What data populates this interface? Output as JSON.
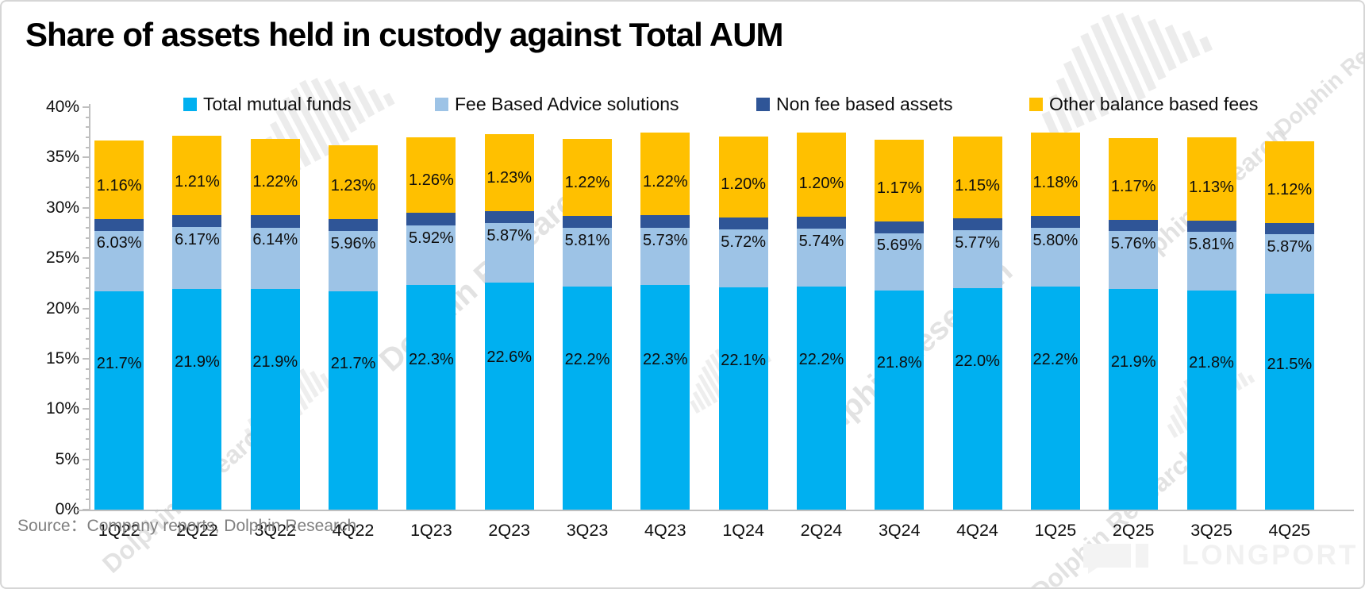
{
  "title": "Share of assets held in custody against Total AUM",
  "source_line": "Source：Company reports, Dolphin Research",
  "watermarks": {
    "diagonal_text": "Dolphin Research",
    "brand_text": "LONGPORT"
  },
  "colors": {
    "total_mutual_funds": "#00B0F0",
    "fee_based_advice": "#9DC3E6",
    "non_fee_based": "#2F5597",
    "other_balance_fees": "#FFC000",
    "axis": "#BFBFBF",
    "source_text": "#808080"
  },
  "legend": [
    {
      "label": "Total mutual funds",
      "color": "#00B0F0"
    },
    {
      "label": "Fee Based Advice solutions",
      "color": "#9DC3E6"
    },
    {
      "label": "Non fee based assets",
      "color": "#2F5597"
    },
    {
      "label": "Other balance based fees",
      "color": "#FFC000"
    }
  ],
  "y_axis": {
    "min": 0,
    "max": 40,
    "major_step": 5,
    "minor_step": 1,
    "tick_labels": [
      "0%",
      "5%",
      "10%",
      "15%",
      "20%",
      "25%",
      "30%",
      "35%",
      "40%"
    ]
  },
  "chart_data": {
    "type": "bar",
    "stacked": true,
    "title": "Share of assets held in custody against Total AUM",
    "categories": [
      "1Q22",
      "2Q22",
      "3Q22",
      "4Q22",
      "1Q23",
      "2Q23",
      "3Q23",
      "4Q23",
      "1Q24",
      "2Q24",
      "3Q24",
      "4Q24",
      "1Q25",
      "2Q25",
      "3Q25",
      "4Q25"
    ],
    "ylim": [
      0,
      40
    ],
    "grid": false,
    "legend_position": "top",
    "series": [
      {
        "name": "Total mutual funds",
        "color": "#00B0F0",
        "values": [
          21.7,
          21.9,
          21.9,
          21.7,
          22.3,
          22.6,
          22.2,
          22.3,
          22.1,
          22.2,
          21.8,
          22.0,
          22.2,
          21.9,
          21.8,
          21.5
        ],
        "labels": [
          "21.7%",
          "21.9%",
          "21.9%",
          "21.7%",
          "22.3%",
          "22.6%",
          "22.2%",
          "22.3%",
          "22.1%",
          "22.2%",
          "21.8%",
          "22.0%",
          "22.2%",
          "21.9%",
          "21.8%",
          "21.5%"
        ],
        "labels_shown": true
      },
      {
        "name": "Fee Based Advice solutions",
        "color": "#9DC3E6",
        "values": [
          6.03,
          6.17,
          6.14,
          5.96,
          5.92,
          5.87,
          5.81,
          5.73,
          5.72,
          5.74,
          5.69,
          5.77,
          5.8,
          5.76,
          5.81,
          5.87
        ],
        "labels": [
          "6.03%",
          "6.17%",
          "6.14%",
          "5.96%",
          "5.92%",
          "5.87%",
          "5.81%",
          "5.73%",
          "5.72%",
          "5.74%",
          "5.69%",
          "5.77%",
          "5.80%",
          "5.76%",
          "5.81%",
          "5.87%"
        ],
        "labels_shown": true
      },
      {
        "name": "Non fee based assets",
        "color": "#2F5597",
        "values": [
          1.16,
          1.21,
          1.22,
          1.23,
          1.26,
          1.23,
          1.22,
          1.22,
          1.2,
          1.2,
          1.17,
          1.15,
          1.18,
          1.17,
          1.13,
          1.12
        ],
        "labels": [
          "1.16%",
          "1.21%",
          "1.22%",
          "1.23%",
          "1.26%",
          "1.23%",
          "1.22%",
          "1.22%",
          "1.20%",
          "1.20%",
          "1.17%",
          "1.15%",
          "1.18%",
          "1.17%",
          "1.13%",
          "1.12%"
        ],
        "labels_shown": true
      },
      {
        "name": "Other balance based fees",
        "color": "#FFC000",
        "values": [
          7.8,
          7.9,
          7.6,
          7.3,
          7.5,
          7.6,
          7.6,
          8.2,
          8.1,
          8.3,
          8.1,
          8.2,
          8.3,
          8.1,
          8.3,
          8.1
        ],
        "labels_shown": false,
        "estimated_from_pixels": true
      }
    ]
  }
}
